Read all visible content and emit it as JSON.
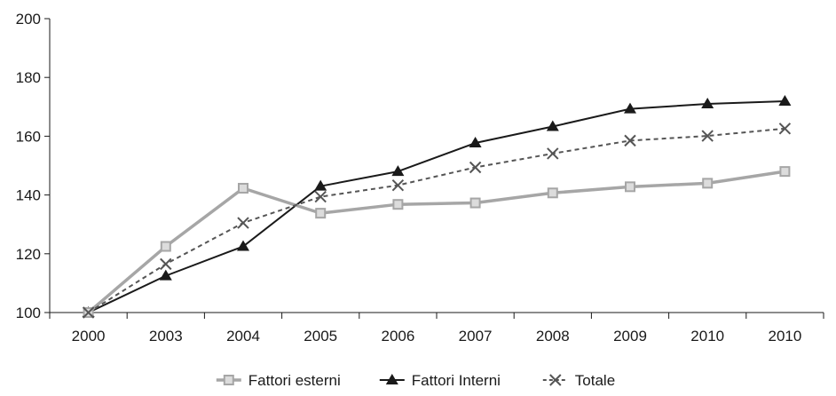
{
  "chart_data": {
    "type": "line",
    "categories": [
      "2000",
      "2003",
      "2004",
      "2005",
      "2006",
      "2007",
      "2008",
      "2009",
      "2010",
      "2010"
    ],
    "ylim": [
      100,
      200
    ],
    "yticks": [
      100,
      120,
      140,
      160,
      180,
      200
    ],
    "grid": false,
    "legend_position": "bottom",
    "series": [
      {
        "name": "Fattori esterni",
        "values": [
          100,
          122.5,
          142.3,
          133.8,
          136.8,
          137.3,
          140.7,
          142.8,
          144.0,
          148.0
        ],
        "color": "#a6a6a6",
        "marker": "square",
        "line_style": "solid"
      },
      {
        "name": "Fattori Interni",
        "values": [
          100,
          112.5,
          122.5,
          143.0,
          148.0,
          157.7,
          163.3,
          169.3,
          171.0,
          171.9
        ],
        "color": "#1a1a1a",
        "marker": "triangle",
        "line_style": "solid"
      },
      {
        "name": "Totale",
        "values": [
          100,
          116.5,
          130.5,
          139.4,
          143.3,
          149.4,
          154.1,
          158.5,
          160.1,
          162.6
        ],
        "color": "#555555",
        "marker": "x",
        "line_style": "dashed"
      }
    ]
  }
}
